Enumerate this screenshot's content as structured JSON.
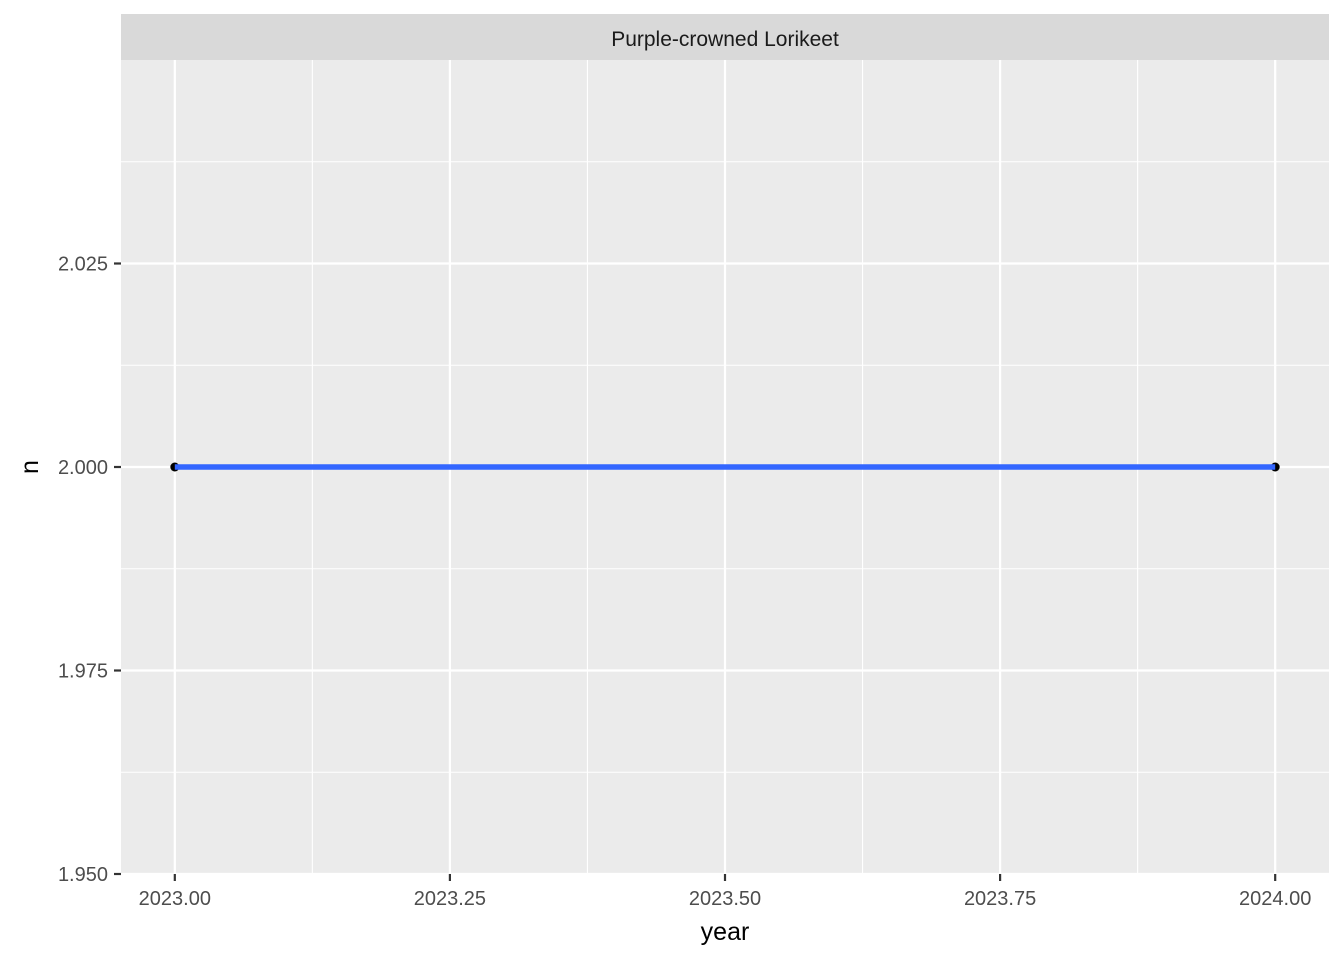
{
  "chart_data": {
    "type": "line",
    "facet_label": "Purple-crowned Lorikeet",
    "xlabel": "year",
    "ylabel": "n",
    "xlim": [
      2022.9511,
      2024.0489
    ],
    "ylim": [
      1.95,
      2.05
    ],
    "x_ticks": [
      2023.0,
      2023.25,
      2023.5,
      2023.75,
      2024.0
    ],
    "x_tick_labels": [
      "2023.00",
      "2023.25",
      "2023.50",
      "2023.75",
      "2024.00"
    ],
    "y_ticks": [
      1.95,
      1.975,
      2.0,
      2.025
    ],
    "y_tick_labels": [
      "1.950",
      "1.975",
      "2.000",
      "2.025"
    ],
    "grid": true,
    "series": [
      {
        "x": [
          2023,
          2024
        ],
        "y": [
          2,
          2
        ],
        "line_color": "#3366ff",
        "point_color": "#000000"
      }
    ],
    "colors": {
      "panel_background": "#ebebeb",
      "strip_background": "#d9d9d9",
      "grid": "#ffffff"
    }
  }
}
